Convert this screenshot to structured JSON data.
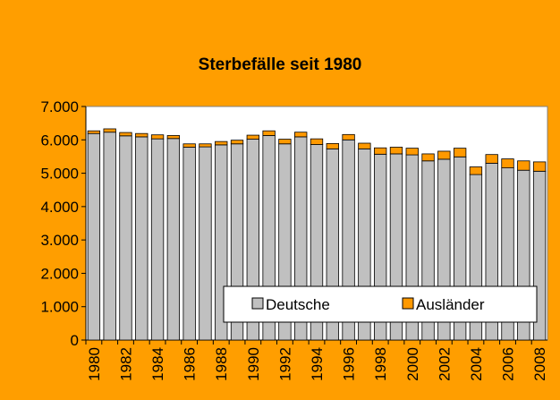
{
  "chart_data": {
    "type": "bar",
    "stacked": true,
    "title": "Sterbefälle seit 1980",
    "categories": [
      "1980",
      null,
      "1982",
      null,
      "1984",
      null,
      "1986",
      null,
      "1988",
      null,
      "1990",
      null,
      "1992",
      null,
      "1994",
      null,
      "1996",
      null,
      "1998",
      null,
      "2000",
      null,
      "2002",
      null,
      "2004",
      null,
      "2006",
      null,
      "2008"
    ],
    "series": [
      {
        "name": "Deutsche",
        "color": "#c0c0c0",
        "values": [
          6190,
          6230,
          6120,
          6090,
          6030,
          6040,
          5780,
          5790,
          5850,
          5880,
          6020,
          6130,
          5880,
          6090,
          5860,
          5730,
          6000,
          5730,
          5570,
          5580,
          5550,
          5370,
          5420,
          5490,
          4960,
          5300,
          5160,
          5090,
          5060
        ]
      },
      {
        "name": "Ausländer",
        "color": "#ff9900",
        "values": [
          80,
          100,
          100,
          100,
          120,
          90,
          100,
          90,
          100,
          110,
          120,
          140,
          140,
          140,
          170,
          160,
          160,
          170,
          190,
          200,
          200,
          210,
          240,
          260,
          230,
          260,
          270,
          280,
          280
        ]
      }
    ],
    "ylim": [
      0,
      7000
    ],
    "yticks": [
      0,
      {
        "value": 1000,
        "label": "1.000"
      },
      {
        "value": 2000,
        "label": "2.000"
      },
      {
        "value": 3000,
        "label": "3.000"
      },
      {
        "value": 4000,
        "label": "4.000"
      },
      {
        "value": 5000,
        "label": "5.000"
      },
      {
        "value": 6000,
        "label": "6.000"
      },
      {
        "value": 7000,
        "label": "7.000"
      }
    ],
    "legend": "bottom-right"
  }
}
